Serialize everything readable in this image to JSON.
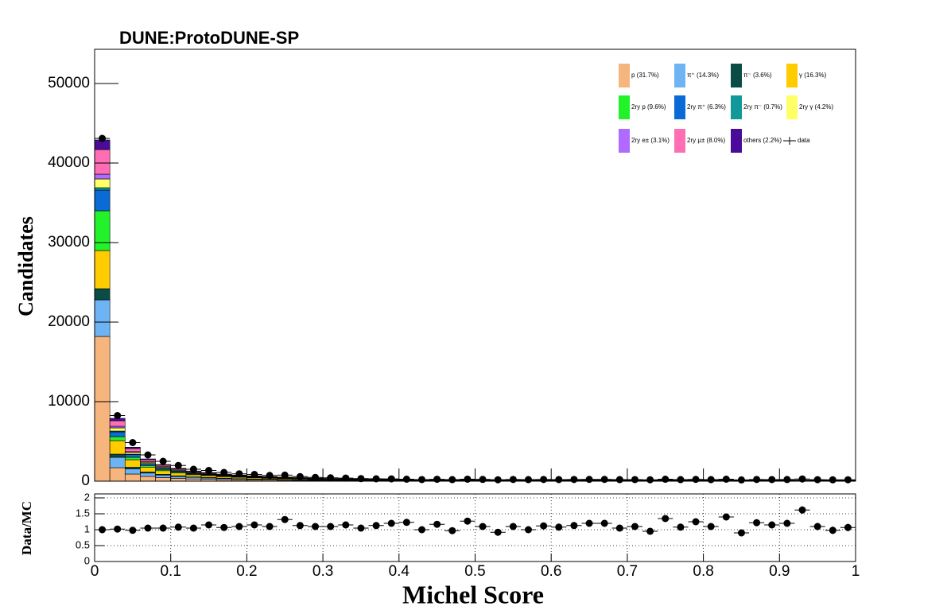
{
  "chart_data": [
    {
      "type": "histogram",
      "title": "DUNE:ProtoDUNE-SP",
      "ylabel": "Candidates",
      "bins": [
        0,
        0.02,
        0.04,
        0.06,
        0.08,
        0.1,
        0.12,
        0.14,
        0.16,
        0.18,
        0.2,
        0.22,
        0.24,
        0.26,
        0.28,
        0.3,
        0.32,
        0.34,
        0.36,
        0.38,
        0.4,
        0.42,
        0.44,
        0.46,
        0.48,
        0.5,
        0.52,
        0.54,
        0.56,
        0.58,
        0.6,
        0.62,
        0.64,
        0.66,
        0.68,
        0.7,
        0.72,
        0.74,
        0.76,
        0.78,
        0.8,
        0.82,
        0.84,
        0.86,
        0.88,
        0.9,
        0.92,
        0.94,
        0.96,
        0.98,
        1
      ],
      "ylim": [
        0,
        54300
      ],
      "yticks": [
        0,
        10000,
        20000,
        30000,
        40000,
        50000
      ],
      "stacked": true,
      "series": [
        {
          "name": "p (31.7%)",
          "color": "#f7b57e",
          "values": [
            18200,
            1700,
            900,
            600,
            450,
            350,
            280,
            240,
            200,
            170,
            150,
            130,
            115,
            100,
            85,
            75,
            68,
            60,
            54,
            48,
            46,
            45,
            44,
            43,
            42,
            41,
            40,
            40,
            39,
            38,
            38,
            37,
            36,
            36,
            35,
            35,
            34,
            34,
            33,
            33,
            32,
            32,
            31,
            31,
            30,
            30,
            30,
            29,
            29,
            29
          ]
        },
        {
          "name": "π⁺ (14.3%)",
          "color": "#6eb4f5",
          "values": [
            4600,
            1300,
            650,
            420,
            320,
            250,
            200,
            170,
            140,
            120,
            105,
            92,
            82,
            72,
            62,
            55,
            50,
            44,
            40,
            36,
            34,
            33,
            33,
            32,
            32,
            31,
            31,
            30,
            30,
            29,
            29,
            28,
            28,
            27,
            27,
            27,
            26,
            26,
            25,
            25,
            25,
            24,
            24,
            24,
            23,
            23,
            23,
            22,
            22,
            22
          ]
        },
        {
          "name": "π⁻ (3.6%)",
          "color": "#0a4d46",
          "values": [
            1400,
            400,
            200,
            130,
            100,
            75,
            60,
            50,
            42,
            36,
            30,
            26,
            23,
            20,
            17,
            15,
            14,
            12,
            11,
            10,
            9,
            9,
            9,
            9,
            9,
            8,
            8,
            8,
            8,
            8,
            8,
            8,
            8,
            7,
            7,
            7,
            7,
            7,
            7,
            7,
            7,
            7,
            7,
            6,
            6,
            6,
            6,
            6,
            6,
            6
          ]
        },
        {
          "name": "γ (16.3%)",
          "color": "#ffcc00",
          "values": [
            4800,
            1700,
            950,
            620,
            450,
            350,
            270,
            230,
            190,
            160,
            140,
            120,
            108,
            94,
            80,
            70,
            62,
            55,
            50,
            44,
            42,
            41,
            40,
            40,
            39,
            38,
            38,
            37,
            36,
            36,
            35,
            35,
            34,
            34,
            33,
            33,
            32,
            32,
            31,
            31,
            31,
            30,
            30,
            30,
            29,
            29,
            29,
            28,
            28,
            28
          ]
        },
        {
          "name": "2ry p (9.6%)",
          "color": "#22f22a",
          "values": [
            5000,
            500,
            300,
            200,
            150,
            120,
            90,
            75,
            62,
            52,
            45,
            40,
            35,
            30,
            26,
            23,
            20,
            18,
            16,
            15,
            14,
            14,
            13,
            13,
            13,
            12,
            12,
            12,
            12,
            11,
            11,
            11,
            11,
            11,
            10,
            10,
            10,
            10,
            10,
            10,
            9,
            9,
            9,
            9,
            9,
            9,
            9,
            8,
            8,
            8
          ]
        },
        {
          "name": "2ry π⁺ (6.3%)",
          "color": "#0a6ad6",
          "values": [
            2600,
            600,
            340,
            220,
            170,
            130,
            100,
            85,
            70,
            60,
            52,
            45,
            40,
            35,
            30,
            27,
            24,
            21,
            19,
            17,
            16,
            16,
            15,
            15,
            15,
            14,
            14,
            14,
            14,
            13,
            13,
            13,
            13,
            12,
            12,
            12,
            12,
            12,
            11,
            11,
            11,
            11,
            11,
            11,
            10,
            10,
            10,
            10,
            10,
            10
          ]
        },
        {
          "name": "2ry π⁻ (0.7%)",
          "color": "#119999",
          "values": [
            300,
            100,
            50,
            35,
            25,
            20,
            16,
            13,
            11,
            9,
            8,
            7,
            6,
            5,
            5,
            4,
            4,
            4,
            3,
            3,
            3,
            3,
            3,
            3,
            3,
            3,
            3,
            3,
            3,
            3,
            3,
            3,
            3,
            3,
            3,
            3,
            3,
            3,
            3,
            3,
            3,
            3,
            3,
            3,
            3,
            3,
            3,
            3,
            3,
            3
          ]
        },
        {
          "name": "2ry γ (4.2%)",
          "color": "#ffff66",
          "values": [
            1100,
            400,
            220,
            150,
            110,
            85,
            68,
            57,
            47,
            40,
            35,
            30,
            27,
            24,
            20,
            18,
            16,
            14,
            13,
            12,
            11,
            11,
            11,
            11,
            10,
            10,
            10,
            10,
            10,
            10,
            9,
            9,
            9,
            9,
            9,
            9,
            9,
            9,
            8,
            8,
            8,
            8,
            8,
            8,
            8,
            8,
            8,
            7,
            7,
            7
          ]
        },
        {
          "name": "2ry e± (3.1%)",
          "color": "#b06aff",
          "values": [
            600,
            200,
            110,
            75,
            55,
            42,
            34,
            28,
            23,
            20,
            17,
            15,
            13,
            12,
            10,
            9,
            8,
            7,
            6,
            6,
            6,
            6,
            6,
            5,
            5,
            5,
            5,
            5,
            5,
            5,
            5,
            5,
            5,
            5,
            5,
            5,
            4,
            4,
            4,
            4,
            4,
            4,
            4,
            4,
            4,
            4,
            4,
            4,
            4,
            4
          ]
        },
        {
          "name": "2ry μ± (8.0%)",
          "color": "#ff6eb4",
          "values": [
            3100,
            700,
            380,
            240,
            180,
            140,
            110,
            92,
            77,
            65,
            57,
            50,
            44,
            38,
            33,
            29,
            26,
            23,
            21,
            19,
            18,
            18,
            17,
            17,
            17,
            16,
            16,
            16,
            16,
            15,
            15,
            15,
            15,
            14,
            14,
            14,
            14,
            14,
            13,
            13,
            13,
            13,
            13,
            13,
            12,
            12,
            12,
            12,
            12,
            12
          ]
        },
        {
          "name": "others (2.2%)",
          "color": "#4a0a9a",
          "values": [
            1200,
            300,
            170,
            110,
            80,
            62,
            50,
            42,
            35,
            30,
            26,
            23,
            20,
            18,
            15,
            14,
            12,
            11,
            10,
            9,
            8,
            8,
            8,
            8,
            8,
            8,
            8,
            7,
            7,
            7,
            7,
            7,
            7,
            7,
            7,
            7,
            6,
            6,
            6,
            6,
            6,
            6,
            6,
            6,
            6,
            6,
            5,
            5,
            5,
            5
          ]
        }
      ],
      "data": {
        "name": "data",
        "color": "#000000",
        "values": [
          43100,
          8250,
          4850,
          3300,
          2500,
          1980,
          1500,
          1350,
          1100,
          930,
          850,
          720,
          760,
          570,
          470,
          420,
          390,
          320,
          300,
          290,
          250,
          205,
          240,
          195,
          255,
          220,
          180,
          215,
          195,
          215,
          205,
          215,
          225,
          225,
          195,
          205,
          175,
          245,
          195,
          225,
          195,
          250,
          160,
          215,
          205,
          210,
          280,
          190,
          170,
          180
        ]
      }
    },
    {
      "type": "ratio",
      "ylabel": "Data/MC",
      "xlabel": "Michel Score",
      "xlim": [
        0,
        1
      ],
      "xticks": [
        0,
        0.1,
        0.2,
        0.3,
        0.4,
        0.5,
        0.6,
        0.7,
        0.8,
        0.9,
        1
      ],
      "ylim": [
        0,
        2.125
      ],
      "yticks": [
        0,
        0.5,
        1,
        1.5,
        2
      ],
      "grid": true,
      "values": [
        1.0,
        1.02,
        0.98,
        1.05,
        1.05,
        1.08,
        1.05,
        1.15,
        1.07,
        1.1,
        1.15,
        1.1,
        1.32,
        1.13,
        1.1,
        1.1,
        1.15,
        1.05,
        1.13,
        1.2,
        1.23,
        1.0,
        1.17,
        0.97,
        1.27,
        1.1,
        0.92,
        1.1,
        1.0,
        1.12,
        1.08,
        1.13,
        1.2,
        1.2,
        1.05,
        1.1,
        0.95,
        1.35,
        1.08,
        1.25,
        1.1,
        1.4,
        0.9,
        1.22,
        1.15,
        1.2,
        1.62,
        1.1,
        0.98,
        1.07
      ],
      "errors": [
        0.01,
        0.02,
        0.02,
        0.03,
        0.03,
        0.03,
        0.04,
        0.04,
        0.04,
        0.05,
        0.05,
        0.05,
        0.06,
        0.06,
        0.06,
        0.07,
        0.07,
        0.07,
        0.08,
        0.08,
        0.08,
        0.08,
        0.08,
        0.08,
        0.09,
        0.09,
        0.09,
        0.09,
        0.09,
        0.09,
        0.09,
        0.09,
        0.1,
        0.1,
        0.1,
        0.1,
        0.1,
        0.1,
        0.1,
        0.1,
        0.1,
        0.11,
        0.11,
        0.11,
        0.11,
        0.11,
        0.12,
        0.12,
        0.12,
        0.12
      ]
    }
  ]
}
